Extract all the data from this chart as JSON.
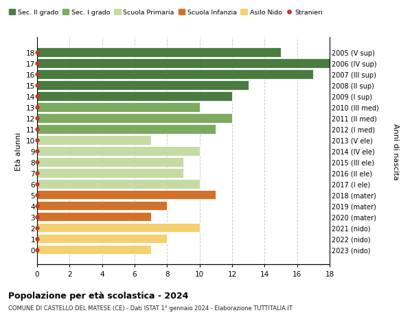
{
  "ages": [
    18,
    17,
    16,
    15,
    14,
    13,
    12,
    11,
    10,
    9,
    8,
    7,
    6,
    5,
    4,
    3,
    2,
    1,
    0
  ],
  "right_labels": [
    "2005 (V sup)",
    "2006 (IV sup)",
    "2007 (III sup)",
    "2008 (II sup)",
    "2009 (I sup)",
    "2010 (III med)",
    "2011 (II med)",
    "2012 (I med)",
    "2013 (V ele)",
    "2014 (IV ele)",
    "2015 (III ele)",
    "2016 (II ele)",
    "2017 (I ele)",
    "2018 (mater)",
    "2019 (mater)",
    "2020 (mater)",
    "2021 (nido)",
    "2022 (nido)",
    "2023 (nido)"
  ],
  "values": [
    15,
    18,
    17,
    13,
    12,
    10,
    12,
    11,
    7,
    10,
    9,
    9,
    10,
    11,
    8,
    7,
    10,
    8,
    7
  ],
  "bar_colors": [
    "#4a7c3f",
    "#4a7c3f",
    "#4a7c3f",
    "#4a7c3f",
    "#4a7c3f",
    "#7caa5e",
    "#7caa5e",
    "#7caa5e",
    "#c5dba4",
    "#c5dba4",
    "#c5dba4",
    "#c5dba4",
    "#c5dba4",
    "#d2722a",
    "#d2722a",
    "#d2722a",
    "#f5d070",
    "#f5d070",
    "#f5d070"
  ],
  "legend_labels": [
    "Sec. II grado",
    "Sec. I grado",
    "Scuola Primaria",
    "Scuola Infanzia",
    "Asilo Nido",
    "Stranieri"
  ],
  "legend_colors": [
    "#4a7c3f",
    "#7caa5e",
    "#c5dba4",
    "#d2722a",
    "#f5d070",
    "#c0392b"
  ],
  "ylabel_left": "Età alunni",
  "ylabel_right": "Anni di nascita",
  "title": "Popolazione per età scolastica - 2024",
  "subtitle": "COMUNE DI CASTELLO DEL MATESE (CE) - Dati ISTAT 1° gennaio 2024 - Elaborazione TUTTITALIA.IT",
  "xlim": [
    0,
    18
  ],
  "xticks": [
    0,
    2,
    4,
    6,
    8,
    10,
    12,
    14,
    16,
    18
  ],
  "dot_color": "#c0392b",
  "background_color": "#ffffff",
  "grid_color": "#cccccc"
}
